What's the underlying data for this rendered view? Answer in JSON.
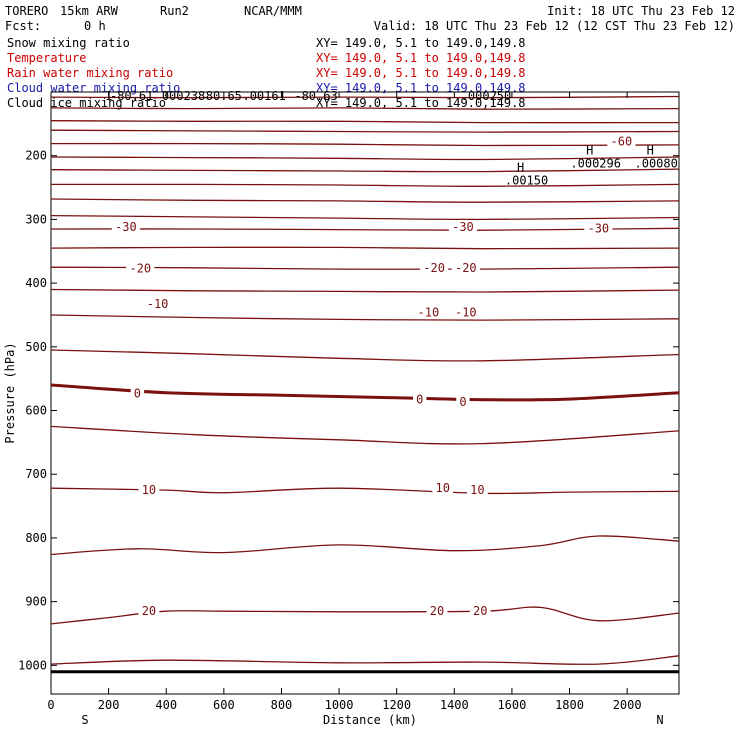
{
  "header": {
    "model": "TORERO",
    "resolution": "15km ARW",
    "run": "Run2",
    "org": "NCAR/MMM",
    "init": "Init: 18 UTC Thu 23 Feb 12",
    "fcst_label": "Fcst:",
    "fcst_value": "0 h",
    "valid": "Valid: 18 UTC Thu 23 Feb 12 (12 CST Thu 23 Feb 12)"
  },
  "fields": [
    {
      "name": "Snow mixing ratio",
      "xy": "XY= 149.0,  5.1 to 149.0,149.8",
      "color": "#000000"
    },
    {
      "name": "Temperature",
      "xy": "XY= 149.0,  5.1 to 149.0,149.8",
      "color": "#cc0000"
    },
    {
      "name": "Rain water mixing ratio",
      "xy": "XY= 149.0,  5.1 to 149.0,149.8",
      "color": "#cc0000"
    },
    {
      "name": "Cloud water mixing ratio",
      "xy": "XY= 149.0,  5.1 to 149.0,149.8",
      "color": "#1a1aaa"
    },
    {
      "name": "Cloud ice mixing ratio",
      "xy": "XY= 149.0,  5.1 to 149.0,149.8",
      "color": "#000000"
    }
  ],
  "chart_data": {
    "type": "contour",
    "xlabel": "Distance (km)",
    "ylabel": "Pressure (hPa)",
    "xlim": [
      0,
      2180
    ],
    "ylim": [
      1045,
      100
    ],
    "xticks": [
      0,
      200,
      400,
      600,
      800,
      1000,
      1200,
      1400,
      1600,
      1800,
      2000
    ],
    "yticks": [
      200,
      300,
      400,
      500,
      600,
      700,
      800,
      900,
      1000
    ],
    "x_endpoints": {
      "left": "S",
      "right": "N"
    },
    "contour_color": "#7a1010",
    "isotherms": [
      {
        "pts": [
          [
            0,
            108
          ],
          [
            500,
            109
          ],
          [
            1000,
            108
          ],
          [
            1500,
            109
          ],
          [
            2180,
            107
          ]
        ]
      },
      {
        "pts": [
          [
            0,
            125
          ],
          [
            500,
            126
          ],
          [
            1000,
            125
          ],
          [
            1500,
            127
          ],
          [
            2180,
            126
          ]
        ]
      },
      {
        "pts": [
          [
            0,
            145
          ],
          [
            500,
            146
          ],
          [
            1000,
            146
          ],
          [
            1500,
            148
          ],
          [
            2180,
            148
          ]
        ]
      },
      {
        "pts": [
          [
            0,
            160
          ],
          [
            500,
            161
          ],
          [
            1000,
            162
          ],
          [
            1500,
            163
          ],
          [
            2180,
            162
          ]
        ]
      },
      {
        "pts": [
          [
            0,
            181
          ],
          [
            500,
            181
          ],
          [
            1000,
            182
          ],
          [
            1500,
            184
          ],
          [
            2180,
            183
          ]
        ]
      },
      {
        "pts": [
          [
            0,
            202
          ],
          [
            500,
            203
          ],
          [
            1000,
            204
          ],
          [
            1500,
            206
          ],
          [
            2180,
            202
          ]
        ]
      },
      {
        "pts": [
          [
            0,
            222
          ],
          [
            500,
            223
          ],
          [
            1000,
            224
          ],
          [
            1500,
            225
          ],
          [
            2180,
            221
          ]
        ]
      },
      {
        "pts": [
          [
            0,
            245
          ],
          [
            500,
            245
          ],
          [
            1000,
            246
          ],
          [
            1500,
            248
          ],
          [
            2180,
            245
          ]
        ]
      },
      {
        "pts": [
          [
            0,
            268
          ],
          [
            500,
            270
          ],
          [
            1000,
            271
          ],
          [
            1500,
            273
          ],
          [
            2180,
            271
          ]
        ]
      },
      {
        "pts": [
          [
            0,
            294
          ],
          [
            500,
            296
          ],
          [
            1000,
            298
          ],
          [
            1500,
            300
          ],
          [
            2180,
            297
          ]
        ]
      },
      {
        "pts": [
          [
            0,
            315
          ],
          [
            500,
            315
          ],
          [
            1000,
            316
          ],
          [
            1500,
            317
          ],
          [
            2180,
            314
          ]
        ]
      },
      {
        "pts": [
          [
            0,
            345
          ],
          [
            500,
            344
          ],
          [
            1000,
            344
          ],
          [
            1500,
            346
          ],
          [
            2180,
            345
          ]
        ]
      },
      {
        "pts": [
          [
            0,
            375
          ],
          [
            500,
            376
          ],
          [
            1000,
            378
          ],
          [
            1500,
            378
          ],
          [
            2180,
            375
          ]
        ]
      },
      {
        "pts": [
          [
            0,
            410
          ],
          [
            500,
            412
          ],
          [
            1000,
            413
          ],
          [
            1500,
            414
          ],
          [
            2180,
            411
          ]
        ]
      },
      {
        "pts": [
          [
            0,
            450
          ],
          [
            500,
            454
          ],
          [
            1000,
            457
          ],
          [
            1500,
            458
          ],
          [
            2180,
            456
          ]
        ]
      },
      {
        "pts": [
          [
            0,
            505
          ],
          [
            500,
            511
          ],
          [
            1000,
            518
          ],
          [
            1500,
            522
          ],
          [
            2180,
            512
          ]
        ]
      },
      {
        "pts": [
          [
            0,
            560
          ],
          [
            400,
            572
          ],
          [
            800,
            576
          ],
          [
            1200,
            580
          ],
          [
            1500,
            583
          ],
          [
            1800,
            582
          ],
          [
            2180,
            572
          ]
        ],
        "bold": true
      },
      {
        "pts": [
          [
            0,
            625
          ],
          [
            500,
            638
          ],
          [
            1000,
            646
          ],
          [
            1500,
            652
          ],
          [
            2180,
            632
          ]
        ]
      },
      {
        "pts": [
          [
            0,
            722
          ],
          [
            400,
            725
          ],
          [
            600,
            729
          ],
          [
            1000,
            722
          ],
          [
            1500,
            730
          ],
          [
            1800,
            728
          ],
          [
            2180,
            727
          ]
        ]
      },
      {
        "pts": [
          [
            0,
            826
          ],
          [
            300,
            817
          ],
          [
            600,
            823
          ],
          [
            1000,
            811
          ],
          [
            1400,
            820
          ],
          [
            1700,
            812
          ],
          [
            1900,
            797
          ],
          [
            2180,
            805
          ]
        ]
      },
      {
        "pts": [
          [
            0,
            935
          ],
          [
            200,
            925
          ],
          [
            400,
            915
          ],
          [
            600,
            915
          ],
          [
            1000,
            916
          ],
          [
            1500,
            915
          ],
          [
            1700,
            909
          ],
          [
            1900,
            930
          ],
          [
            2180,
            918
          ]
        ]
      },
      {
        "pts": [
          [
            0,
            998
          ],
          [
            400,
            992
          ],
          [
            1000,
            996
          ],
          [
            1500,
            995
          ],
          [
            1900,
            998
          ],
          [
            2180,
            985
          ]
        ]
      }
    ],
    "contour_labels": [
      {
        "text": "-60",
        "x": 1980,
        "y": 178
      },
      {
        "text": "-30",
        "x": 260,
        "y": 312
      },
      {
        "text": "-30",
        "x": 1430,
        "y": 312
      },
      {
        "text": "-30",
        "x": 1900,
        "y": 314
      },
      {
        "text": "-20",
        "x": 310,
        "y": 377
      },
      {
        "text": "-20",
        "x": 1330,
        "y": 376
      },
      {
        "text": "-20",
        "x": 1440,
        "y": 376
      },
      {
        "text": "-10",
        "x": 370,
        "y": 433
      },
      {
        "text": "-10",
        "x": 1310,
        "y": 446
      },
      {
        "text": "-10",
        "x": 1440,
        "y": 446
      },
      {
        "text": "0",
        "x": 300,
        "y": 573
      },
      {
        "text": "0",
        "x": 1280,
        "y": 583
      },
      {
        "text": "0",
        "x": 1430,
        "y": 587
      },
      {
        "text": "10",
        "x": 340,
        "y": 725
      },
      {
        "text": "10",
        "x": 1360,
        "y": 722
      },
      {
        "text": "10",
        "x": 1480,
        "y": 725
      },
      {
        "text": "20",
        "x": 340,
        "y": 915
      },
      {
        "text": "20",
        "x": 1340,
        "y": 915
      },
      {
        "text": "20",
        "x": 1490,
        "y": 915
      }
    ],
    "highs": [
      {
        "text": "H",
        "value": ".00150",
        "x": 1630,
        "y": 225
      },
      {
        "text": "H",
        "value": ".000296",
        "x": 1870,
        "y": 198
      },
      {
        "text": "H",
        "value": ".00080",
        "x": 2080,
        "y": 198
      }
    ],
    "top_clutter": [
      {
        "text": "1",
        "x": 200
      },
      {
        "text": "-80.61",
        "x": 280
      },
      {
        "text": "000238",
        "x": 460
      },
      {
        "text": "80.65",
        "x": 600
      },
      {
        "text": ".00161",
        "x": 740
      },
      {
        "text": "-80.63",
        "x": 920
      },
      {
        "text": ".000250",
        "x": 1510
      }
    ],
    "ground_p": 1010
  }
}
